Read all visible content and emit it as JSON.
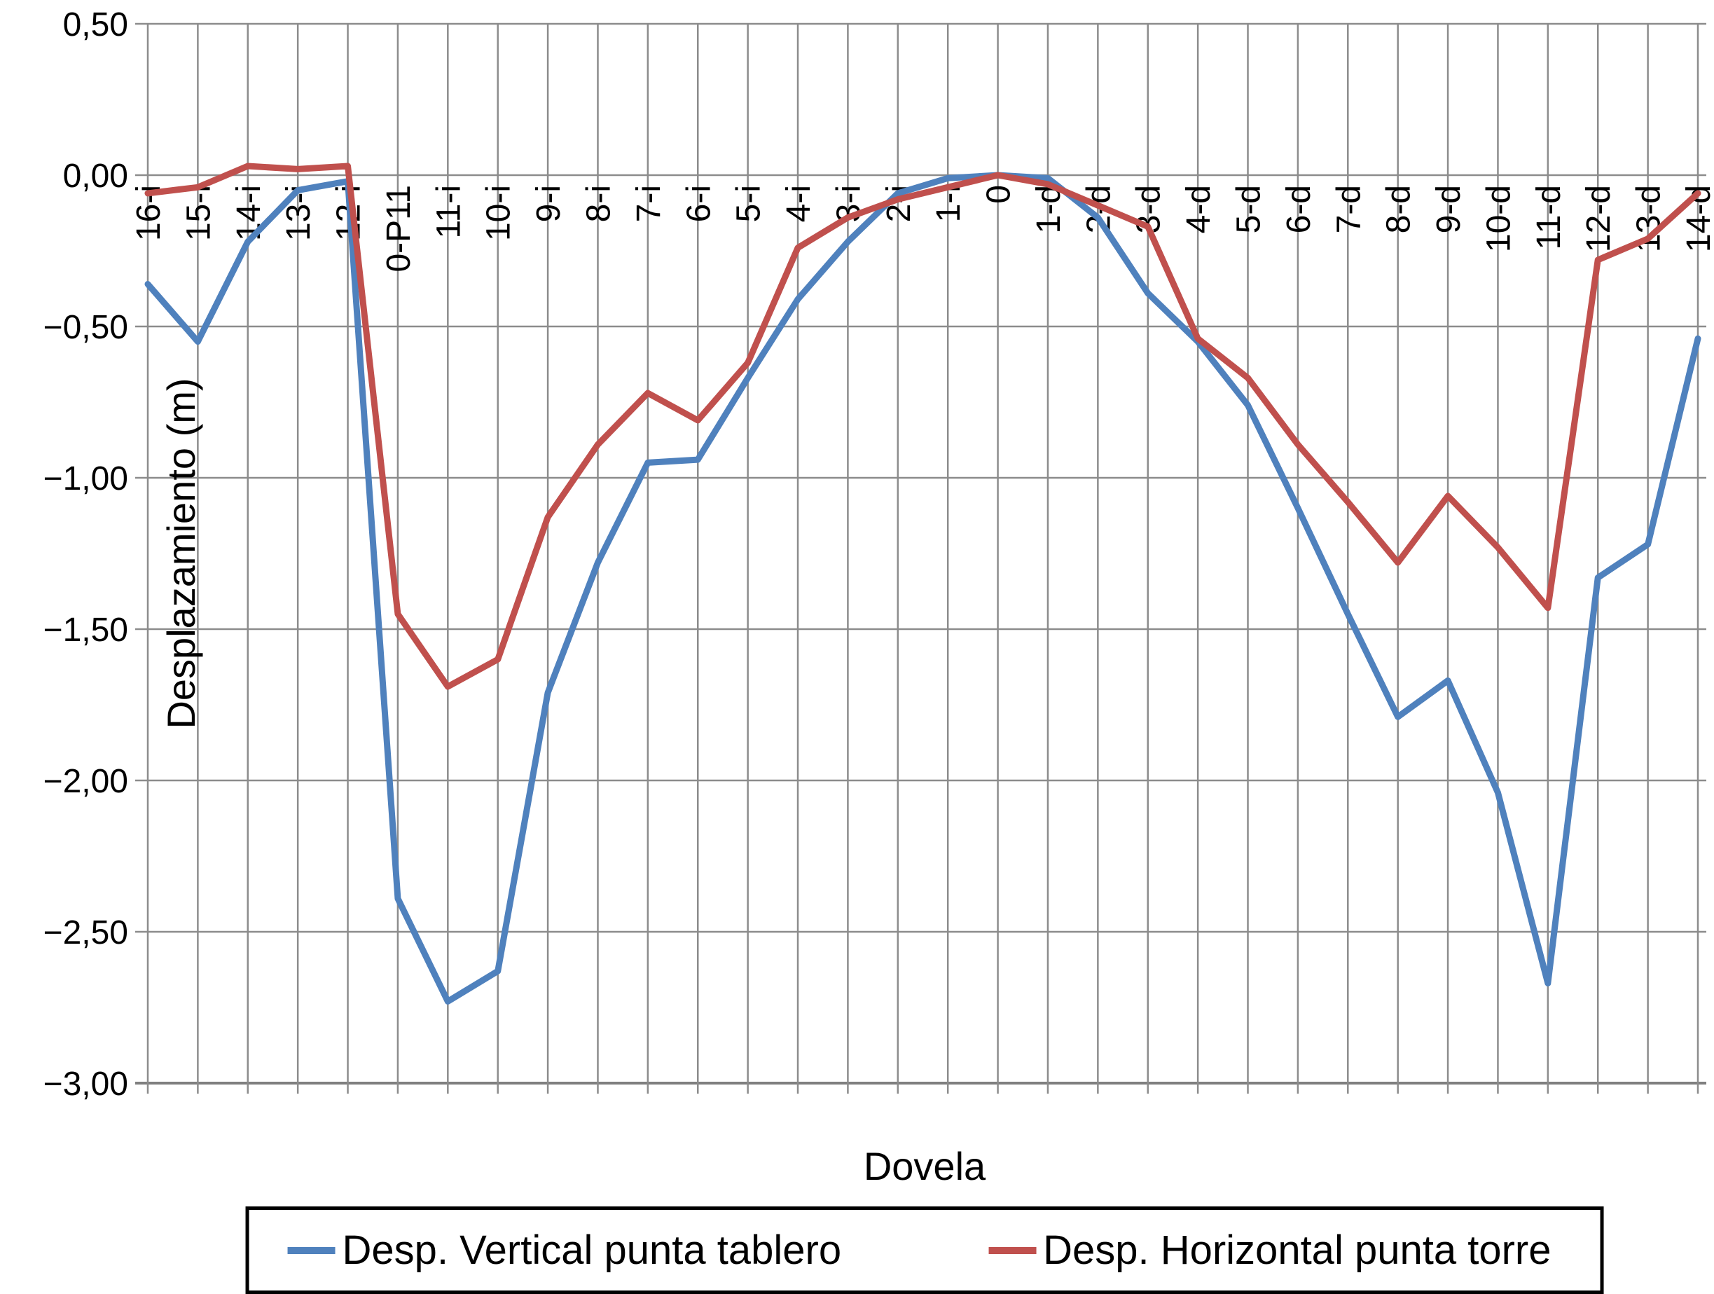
{
  "chart_data": {
    "type": "line",
    "title": "",
    "xlabel": "Dovela",
    "ylabel": "Desplazamiento (m)",
    "ylim": [
      -3.0,
      0.5
    ],
    "grid": true,
    "legend_position": "bottom",
    "y_ticks": {
      "values": [
        0.5,
        0.0,
        -0.5,
        -1.0,
        -1.5,
        -2.0,
        -2.5,
        -3.0
      ],
      "labels": [
        "0,50",
        "0,00",
        "−0,50",
        "−1,00",
        "−1,50",
        "−2,00",
        "−2,50",
        "−3,00"
      ]
    },
    "categories": [
      "16-i",
      "15-i",
      "14-i",
      "13-i",
      "12-i",
      "0-P11",
      "11-i",
      "10-i",
      "9-i",
      "8-i",
      "7-i",
      "6-i",
      "5-i",
      "4-i",
      "3-i",
      "2-i",
      "1-i",
      "0",
      "1-d",
      "2-d",
      "3-d",
      "4-d",
      "5-d",
      "6-d",
      "7-d",
      "8-d",
      "9-d",
      "10-d",
      "11-d",
      "12-d",
      "13-d",
      "14-d"
    ],
    "series": [
      {
        "name": "Desp. Vertical punta tablero",
        "color": "#4F81BD",
        "values": [
          -0.36,
          -0.55,
          -0.22,
          -0.05,
          -0.02,
          -2.39,
          -2.73,
          -2.63,
          -1.71,
          -1.28,
          -0.95,
          -0.94,
          -0.67,
          -0.41,
          -0.22,
          -0.06,
          -0.01,
          0.0,
          -0.01,
          -0.14,
          -0.39,
          -0.55,
          -0.76,
          -1.1,
          -1.45,
          -1.79,
          -1.67,
          -2.04,
          -2.67,
          -1.33,
          -1.22,
          -0.54
        ]
      },
      {
        "name": "Desp. Horizontal punta torre",
        "color": "#C0504D",
        "values": [
          -0.06,
          -0.04,
          0.03,
          0.02,
          0.03,
          -1.45,
          -1.69,
          -1.6,
          -1.13,
          -0.89,
          -0.72,
          -0.81,
          -0.62,
          -0.24,
          -0.14,
          -0.08,
          -0.04,
          0.0,
          -0.03,
          -0.1,
          -0.17,
          -0.54,
          -0.67,
          -0.89,
          -1.08,
          -1.28,
          -1.06,
          -1.23,
          -1.43,
          -0.28,
          -0.21,
          -0.06
        ]
      }
    ]
  },
  "colors": {
    "gridline": "#8c8c8c",
    "axis_line": "#7f7f7f",
    "text": "#000000",
    "background": "#ffffff"
  }
}
